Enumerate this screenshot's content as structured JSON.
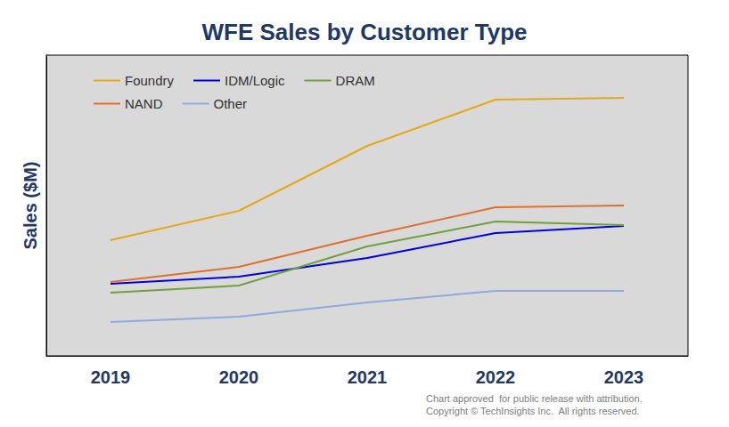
{
  "chart_data": {
    "type": "line",
    "title": "WFE Sales by Customer Type",
    "y_label": "Sales ($M)",
    "categories": [
      "2019",
      "2020",
      "2021",
      "2022",
      "2023"
    ],
    "series": [
      {
        "name": "Foundry",
        "color": "#e6a817",
        "values": [
          13000,
          16300,
          23600,
          28800,
          29000
        ]
      },
      {
        "name": "IDM/Logic",
        "color": "#0000e0",
        "values": [
          8100,
          8900,
          11000,
          13800,
          14600
        ]
      },
      {
        "name": "DRAM",
        "color": "#70a040",
        "values": [
          7100,
          7900,
          12300,
          15100,
          14700
        ]
      },
      {
        "name": "NAND",
        "color": "#e07030",
        "values": [
          8300,
          10000,
          13500,
          16700,
          16900
        ]
      },
      {
        "name": "Other",
        "color": "#8faadc",
        "values": [
          3800,
          4400,
          6000,
          7300,
          7300
        ]
      }
    ],
    "ylim": [
      0,
      33800
    ],
    "tick_labels": "x",
    "grid": false,
    "legend": "upper left",
    "marker": "none",
    "line_style": "solid",
    "annotations": [
      "Chart approved  for public release with attribution.",
      "Copyright © TechInsights Inc.  All rights reserved."
    ]
  }
}
